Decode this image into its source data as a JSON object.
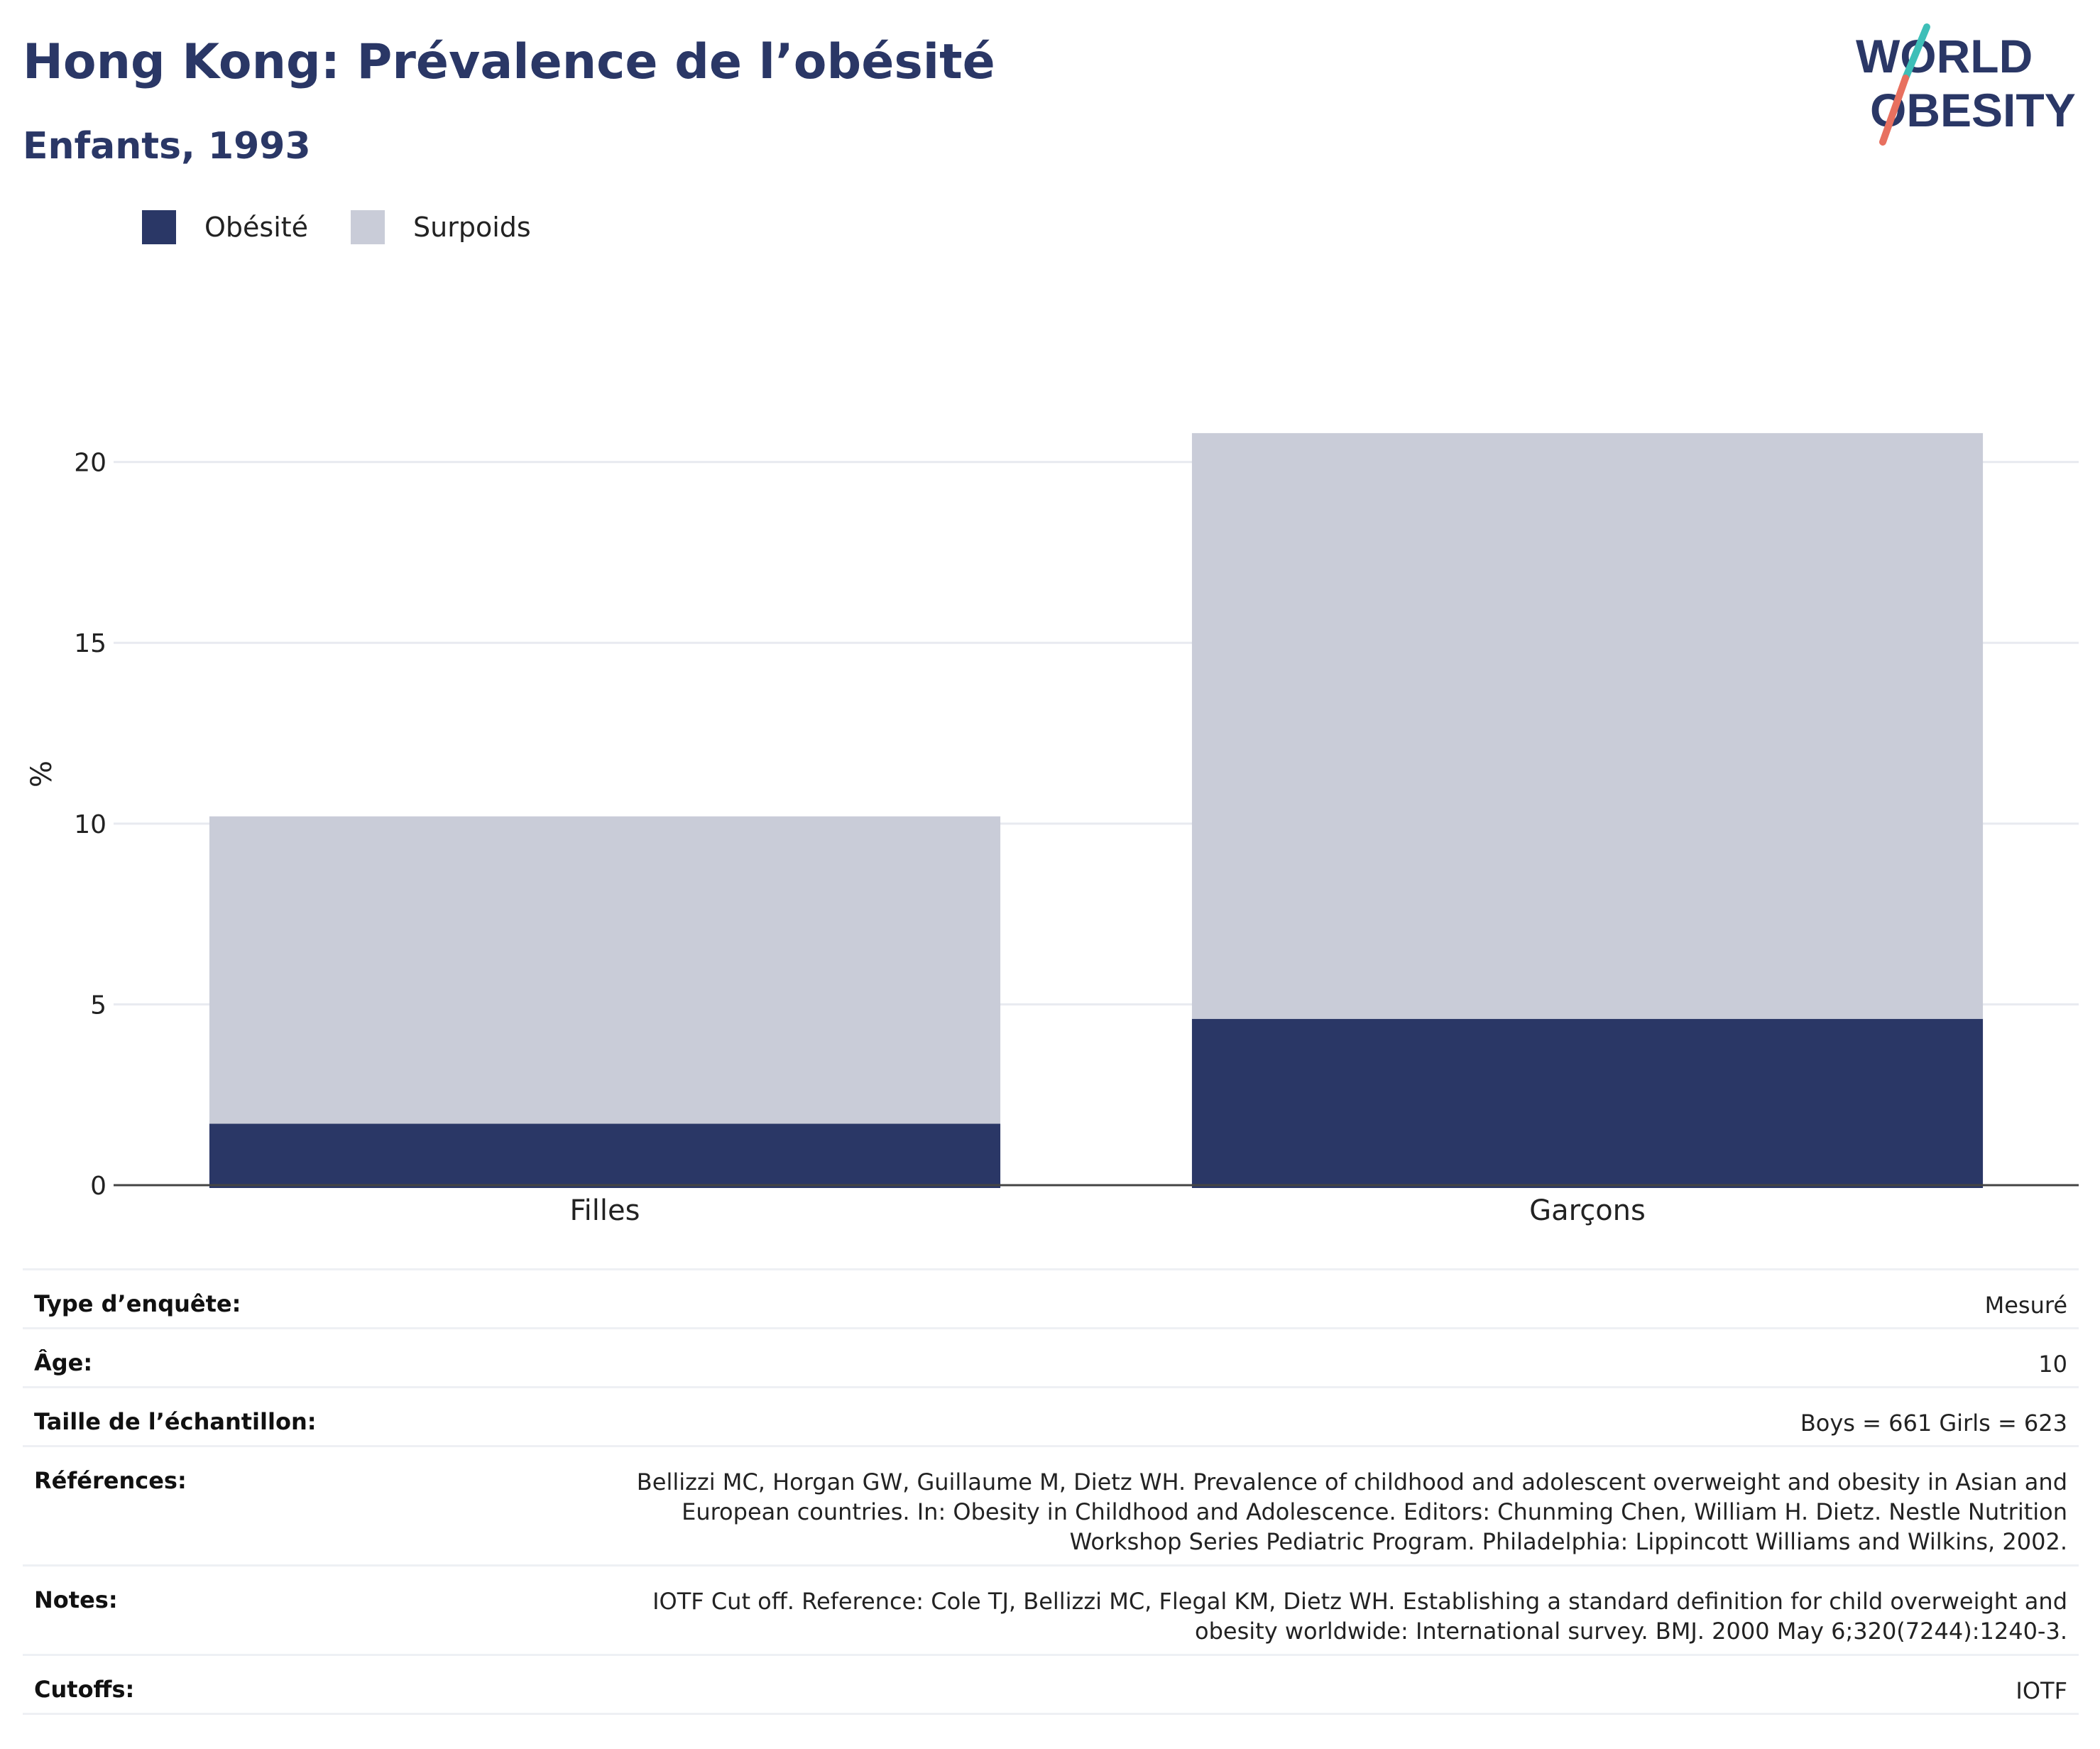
{
  "header": {
    "title": "Hong Kong: Prévalence de l’obésité",
    "subtitle": "Enfants, 1993"
  },
  "logo": {
    "line1": "WORLD",
    "line2": "OBESITY",
    "colors": {
      "text": "#2a3766",
      "slash_teal": "#3ebfb8",
      "slash_coral": "#e8705f"
    }
  },
  "legend": {
    "items": [
      {
        "label": "Obésité",
        "color": "#2a3766"
      },
      {
        "label": "Surpoids",
        "color": "#c9ccd8"
      }
    ]
  },
  "chart_data": {
    "type": "bar",
    "stacked": true,
    "categories": [
      "Filles",
      "Garçons"
    ],
    "series": [
      {
        "name": "Obésité",
        "color": "#2a3766",
        "values": [
          1.7,
          4.6
        ]
      },
      {
        "name": "Surpoids",
        "color": "#c9ccd8",
        "values": [
          8.5,
          16.2
        ]
      }
    ],
    "ylabel": "%",
    "yticks": [
      0,
      5,
      10,
      15,
      20
    ],
    "ylim": [
      0,
      21.8
    ],
    "grid": true,
    "legend_position": "top-left"
  },
  "meta": [
    {
      "label": "Type d’enquête:",
      "value": "Mesuré"
    },
    {
      "label": "Âge:",
      "value": "10"
    },
    {
      "label": "Taille de l’échantillon:",
      "value": "Boys = 661 Girls = 623"
    },
    {
      "label": "Références:",
      "value": "Bellizzi MC, Horgan GW, Guillaume M, Dietz WH. Prevalence of childhood and adolescent overweight and obesity in Asian and European countries. In: Obesity in Childhood and Adolescence. Editors: Chunming Chen, William H. Dietz. Nestle Nutrition Workshop Series Pediatric Program. Philadelphia: Lippincott Williams and Wilkins, 2002."
    },
    {
      "label": "Notes:",
      "value": "IOTF Cut off. Reference: Cole TJ, Bellizzi MC, Flegal KM, Dietz WH. Establishing a standard definition for child overweight and obesity worldwide: International survey. BMJ. 2000 May 6;320(7244):1240-3."
    },
    {
      "label": "Cutoffs:",
      "value": "IOTF"
    }
  ]
}
